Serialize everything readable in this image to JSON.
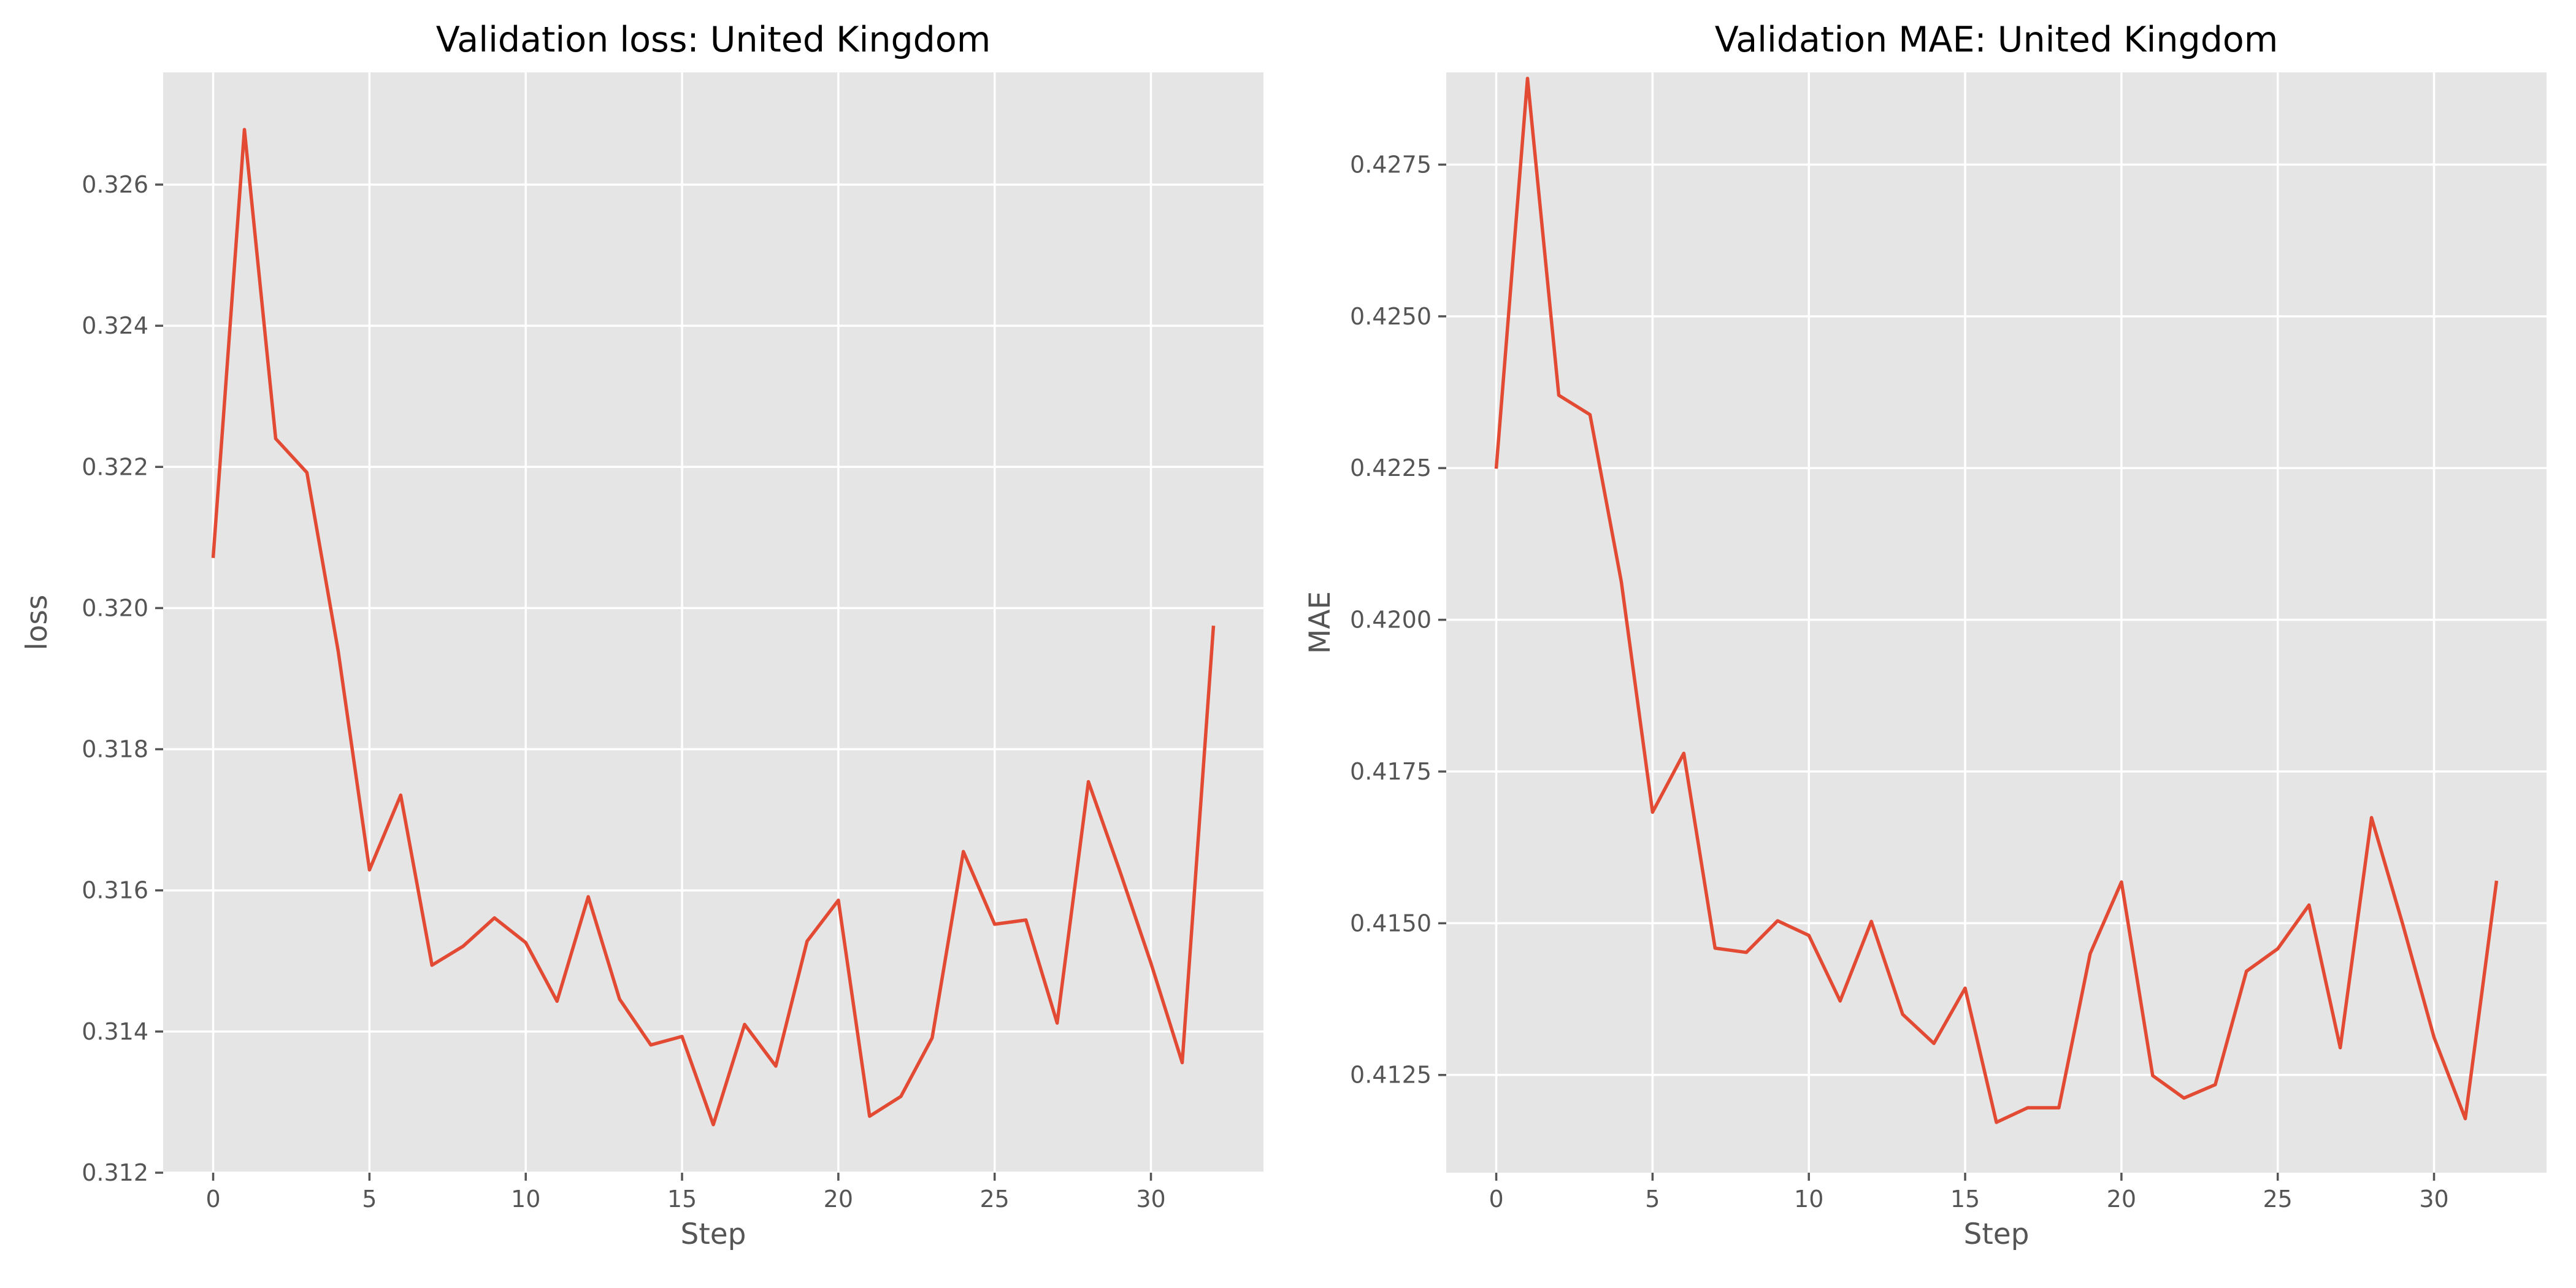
{
  "chart_data": [
    {
      "type": "line",
      "title": "Validation loss: United Kingdom",
      "xlabel": "Step",
      "ylabel": "loss",
      "xlim": [
        -1.6,
        33.6
      ],
      "ylim": [
        0.312,
        0.32759
      ],
      "xticks": [
        0,
        5,
        10,
        15,
        20,
        25,
        30
      ],
      "yticks": [
        0.312,
        0.314,
        0.316,
        0.318,
        0.32,
        0.322,
        0.324,
        0.326
      ],
      "ytick_labels": [
        "0.312",
        "0.314",
        "0.316",
        "0.318",
        "0.320",
        "0.322",
        "0.324",
        "0.326"
      ],
      "grid": true,
      "series": [
        {
          "color": "#e24a33",
          "x": [
            0,
            1,
            2,
            3,
            4,
            5,
            6,
            7,
            8,
            9,
            10,
            11,
            12,
            13,
            14,
            15,
            16,
            17,
            18,
            19,
            20,
            21,
            22,
            23,
            24,
            25,
            26,
            27,
            28,
            29,
            30,
            31,
            32
          ],
          "values": [
            0.32071,
            0.32678,
            0.3224,
            0.32192,
            0.31939,
            0.31629,
            0.31735,
            0.31494,
            0.31521,
            0.31561,
            0.31526,
            0.31443,
            0.31591,
            0.31446,
            0.31381,
            0.31393,
            0.31268,
            0.3141,
            0.31351,
            0.31528,
            0.31586,
            0.3128,
            0.31308,
            0.31391,
            0.31655,
            0.31552,
            0.31558,
            0.31412,
            0.31754,
            0.31628,
            0.31497,
            0.31356,
            0.31975
          ]
        }
      ]
    },
    {
      "type": "line",
      "title": "Validation MAE: United Kingdom",
      "xlabel": "Step",
      "ylabel": "MAE",
      "xlim": [
        -1.6,
        33.6
      ],
      "ylim": [
        0.41089,
        0.42902
      ],
      "xticks": [
        0,
        5,
        10,
        15,
        20,
        25,
        30
      ],
      "yticks": [
        0.4125,
        0.415,
        0.4175,
        0.42,
        0.4225,
        0.425,
        0.4275
      ],
      "ytick_labels": [
        "0.4125",
        "0.4150",
        "0.4175",
        "0.4200",
        "0.4225",
        "0.4250",
        "0.4275"
      ],
      "grid": true,
      "series": [
        {
          "color": "#e24a33",
          "x": [
            0,
            1,
            2,
            3,
            4,
            5,
            6,
            7,
            8,
            9,
            10,
            11,
            12,
            13,
            14,
            15,
            16,
            17,
            18,
            19,
            20,
            21,
            22,
            23,
            24,
            25,
            26,
            27,
            28,
            29,
            30,
            31,
            32
          ],
          "values": [
            0.42249,
            0.42892,
            0.4237,
            0.42338,
            0.42063,
            0.41683,
            0.4178,
            0.41459,
            0.41452,
            0.41504,
            0.4148,
            0.41372,
            0.41503,
            0.4135,
            0.41302,
            0.41393,
            0.41172,
            0.41196,
            0.41196,
            0.4145,
            0.41568,
            0.41249,
            0.41212,
            0.41234,
            0.41421,
            0.41458,
            0.4153,
            0.41295,
            0.41674,
            0.41498,
            0.41312,
            0.41178,
            0.4157
          ]
        }
      ]
    }
  ]
}
